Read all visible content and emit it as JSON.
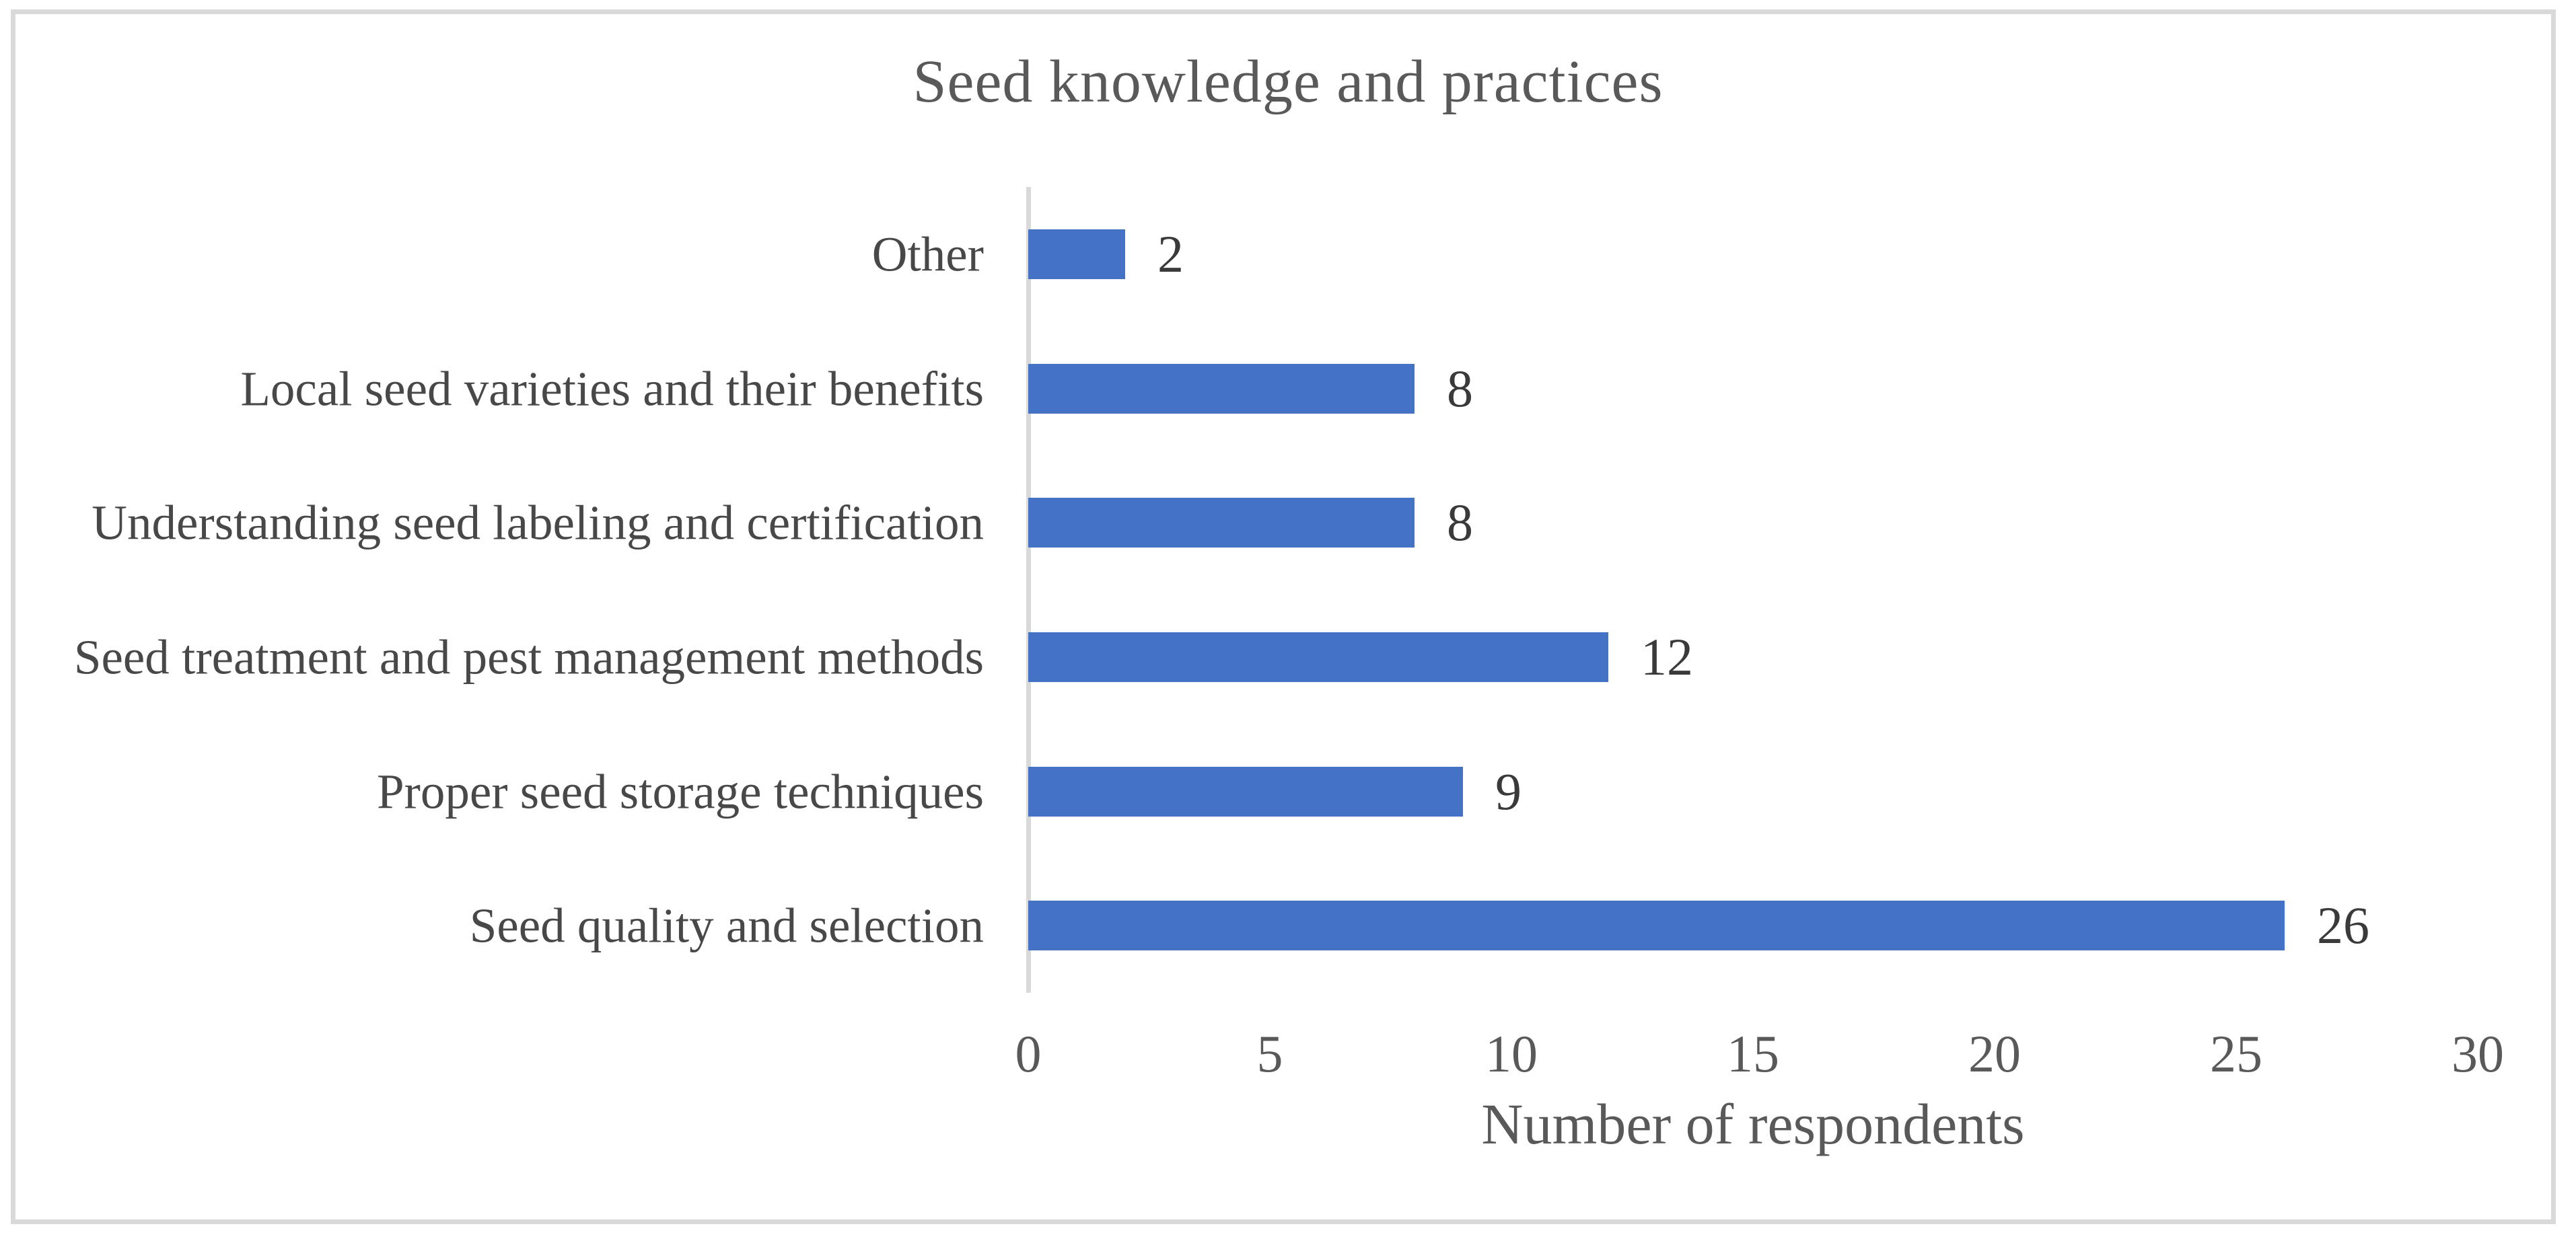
{
  "chart_data": {
    "type": "bar",
    "orientation": "horizontal",
    "title": "Seed knowledge and practices",
    "xlabel": "Number of respondents",
    "categories": [
      "Other",
      "Local seed varieties and their benefits",
      "Understanding seed labeling and certification",
      "Seed treatment and pest management methods",
      "Proper seed storage techniques",
      "Seed quality and selection"
    ],
    "values": [
      2,
      8,
      8,
      12,
      9,
      26
    ],
    "data_labels": [
      "2",
      "8",
      "8",
      "12",
      "9",
      "26"
    ],
    "xlim": [
      0,
      30
    ],
    "xticks": [
      0,
      5,
      10,
      15,
      20,
      25,
      30
    ],
    "grid": "off",
    "legend": "none",
    "bar_color": "#4472C4",
    "colors": {
      "title": "#595959",
      "category_labels": "#484848",
      "tick_labels": "#595959",
      "value_labels": "#3A3A3A",
      "axis_line": "#D9D9D9",
      "frame_border": "#D9D9D9",
      "background": "#FFFFFF"
    }
  }
}
